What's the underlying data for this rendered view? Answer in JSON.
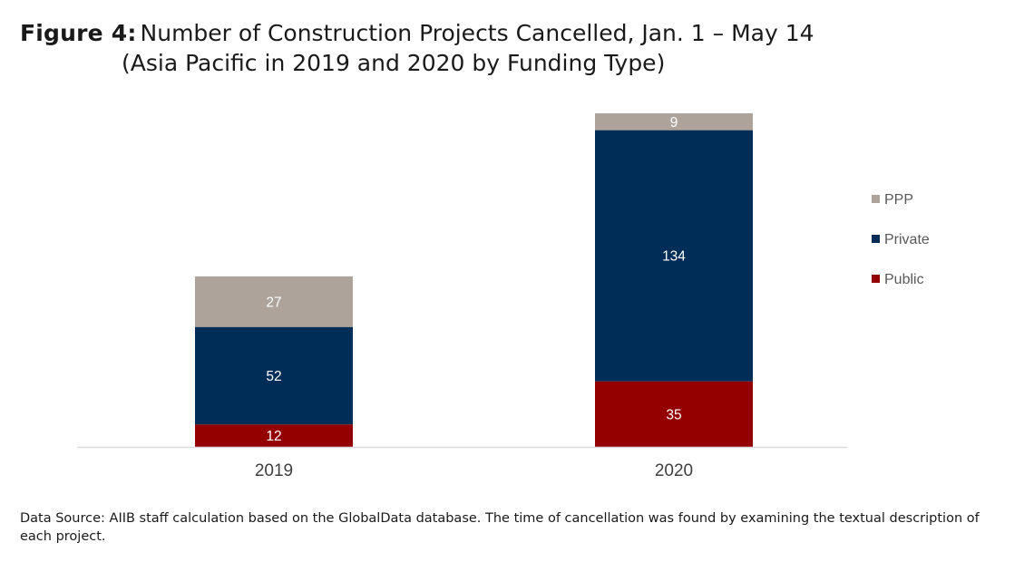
{
  "figure_label": "Figure 4:",
  "title_line1": "Number of Construction Projects Cancelled, Jan. 1 – May 14",
  "title_line2": "(Asia Pacific in 2019 and 2020 by Funding Type)",
  "footnote": "Data Source: AIIB staff calculation based on the GlobalData database. The time of cancellation was found by examining the textual description of each project.",
  "chart_data": {
    "type": "bar",
    "stacked": true,
    "categories": [
      "2019",
      "2020"
    ],
    "series": [
      {
        "name": "Public",
        "values": [
          12,
          35
        ],
        "color": "#940000"
      },
      {
        "name": "Private",
        "values": [
          52,
          134
        ],
        "color": "#002d57"
      },
      {
        "name": "PPP",
        "values": [
          27,
          9
        ],
        "color": "#ada39a"
      }
    ],
    "legend_order": [
      "PPP",
      "Private",
      "Public"
    ],
    "legend_position": "right",
    "ylim": [
      0,
      178
    ],
    "grid": false,
    "data_labels": true
  }
}
